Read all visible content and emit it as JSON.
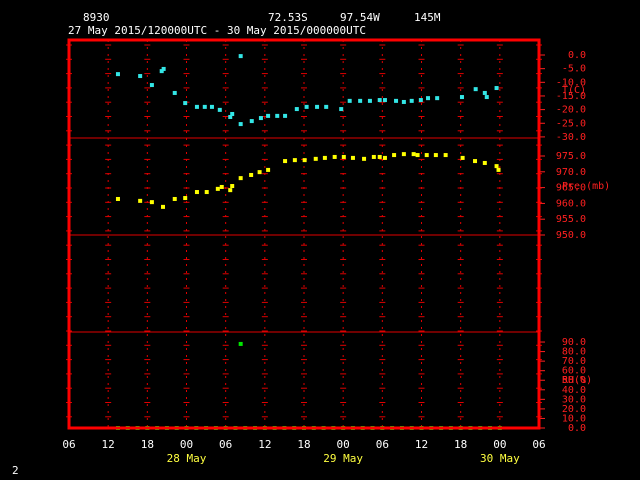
{
  "header": {
    "station": "8930",
    "latitude": "72.53S",
    "longitude": "97.54W",
    "elevation": "145M",
    "period": "27 May 2015/120000UTC - 30 May 2015/000000UTC"
  },
  "x_axis": {
    "xlim": [
      0,
      72
    ],
    "xticks": [
      {
        "value": 0,
        "label": "06"
      },
      {
        "value": 6,
        "label": "12"
      },
      {
        "value": 12,
        "label": "18"
      },
      {
        "value": 18,
        "label": "00"
      },
      {
        "value": 24,
        "label": "06"
      },
      {
        "value": 30,
        "label": "12"
      },
      {
        "value": 36,
        "label": "18"
      },
      {
        "value": 42,
        "label": "00"
      },
      {
        "value": 48,
        "label": "06"
      },
      {
        "value": 54,
        "label": "12"
      },
      {
        "value": 60,
        "label": "18"
      },
      {
        "value": 66,
        "label": "00"
      },
      {
        "value": 72,
        "label": "06"
      }
    ],
    "date_labels": [
      {
        "value": 18,
        "label": "28 May"
      },
      {
        "value": 42,
        "label": "29 May"
      },
      {
        "value": 66,
        "label": "30 May"
      }
    ]
  },
  "chart_data": [
    {
      "type": "scatter",
      "axis_label": "T(C)",
      "color": "#33e6e6",
      "ylim": [
        -30.4,
        5.5
      ],
      "yticks": [
        {
          "value": 0,
          "label": "0.0"
        },
        {
          "value": -5,
          "label": "-5.0"
        },
        {
          "value": -10,
          "label": "-10.0"
        },
        {
          "value": -15,
          "label": "-15.0"
        },
        {
          "value": -20,
          "label": "-20.0"
        },
        {
          "value": -25,
          "label": "-25.0"
        },
        {
          "value": -30,
          "label": "-30.0"
        }
      ],
      "x": [
        7.5,
        10.9,
        12.7,
        14.2,
        14.5,
        16.2,
        17.8,
        19.6,
        20.8,
        21.9,
        23.1,
        24.7,
        25.0,
        26.3,
        26.3,
        28.0,
        29.4,
        30.5,
        31.9,
        33.1,
        34.9,
        36.4,
        38.0,
        39.4,
        41.7,
        43.0,
        44.6,
        46.1,
        47.6,
        48.4,
        50.1,
        51.3,
        52.5,
        53.9,
        55.0,
        56.4,
        60.2,
        62.3,
        63.7,
        64.0,
        65.5
      ],
      "values": [
        -7.0,
        -7.7,
        -11.0,
        -5.9,
        -5.1,
        -13.9,
        -17.6,
        -19.0,
        -19.0,
        -19.0,
        -20.1,
        -22.7,
        -21.6,
        -0.4,
        -25.3,
        -24.2,
        -23.1,
        -22.3,
        -22.3,
        -22.3,
        -19.8,
        -19.0,
        -19.0,
        -19.0,
        -19.8,
        -16.8,
        -16.8,
        -16.8,
        -16.5,
        -16.5,
        -16.8,
        -17.2,
        -16.8,
        -16.5,
        -15.8,
        -15.8,
        -15.4,
        -12.5,
        -13.9,
        -15.4,
        -12.1
      ]
    },
    {
      "type": "scatter",
      "axis_label": "Pre (mb)",
      "color": "#ffff00",
      "ylim": [
        950,
        980.7
      ],
      "yticks": [
        {
          "value": 950,
          "label": "950.0"
        },
        {
          "value": 955,
          "label": "955.0"
        },
        {
          "value": 960,
          "label": "960.0"
        },
        {
          "value": 965,
          "label": "965.0"
        },
        {
          "value": 970,
          "label": "970.0"
        },
        {
          "value": 975,
          "label": "975.0"
        }
      ],
      "x": [
        7.5,
        10.9,
        12.7,
        14.4,
        16.2,
        17.8,
        19.6,
        21.1,
        22.8,
        23.4,
        24.7,
        25.0,
        26.3,
        27.9,
        29.2,
        30.5,
        33.1,
        34.6,
        36.1,
        37.8,
        39.2,
        40.7,
        42.1,
        43.5,
        45.2,
        46.7,
        47.6,
        48.4,
        49.8,
        51.3,
        52.8,
        53.4,
        54.8,
        56.2,
        57.7,
        60.3,
        62.2,
        63.7,
        65.5,
        65.8
      ],
      "values": [
        961.4,
        960.8,
        960.4,
        958.9,
        961.4,
        961.7,
        963.6,
        963.6,
        964.6,
        965.2,
        964.2,
        965.5,
        968.0,
        969.0,
        969.9,
        970.6,
        973.4,
        973.7,
        973.7,
        974.1,
        974.4,
        974.7,
        974.7,
        974.4,
        974.1,
        974.7,
        974.7,
        974.4,
        975.3,
        975.6,
        975.6,
        975.3,
        975.3,
        975.3,
        975.3,
        974.4,
        973.4,
        972.8,
        971.8,
        970.6
      ]
    },
    {
      "type": "scatter",
      "axis_label": "RH(%)",
      "color": "#00e600",
      "ylim": [
        0,
        100.5
      ],
      "yticks": [
        {
          "value": 0,
          "label": "0.0"
        },
        {
          "value": 10,
          "label": "10.0"
        },
        {
          "value": 20,
          "label": "20.0"
        },
        {
          "value": 30,
          "label": "30.0"
        },
        {
          "value": 40,
          "label": "40.0"
        },
        {
          "value": 50,
          "label": "50.0"
        },
        {
          "value": 60,
          "label": "60.0"
        },
        {
          "value": 70,
          "label": "70.0"
        },
        {
          "value": 80,
          "label": "80.0"
        },
        {
          "value": 90,
          "label": "90.0"
        }
      ],
      "x": [
        7.5,
        9,
        10.5,
        12,
        13.5,
        15,
        16.5,
        18,
        19.5,
        21,
        22.5,
        24,
        25.5,
        26.3,
        27,
        28.5,
        30,
        31.5,
        33,
        34.5,
        36,
        37.5,
        39,
        40.5,
        42,
        43.5,
        45,
        46.5,
        48,
        49.5,
        51,
        52.5,
        54,
        55.5,
        57,
        58.5,
        60,
        61.5,
        63,
        64.5,
        66
      ],
      "values": [
        0,
        0,
        0,
        0,
        0,
        0,
        0,
        0,
        0,
        0,
        0,
        0,
        0,
        88,
        0,
        0,
        0,
        0,
        0,
        0,
        0,
        0,
        0,
        0,
        0,
        0,
        0,
        0,
        0,
        0,
        0,
        0,
        0,
        0,
        0,
        0,
        0,
        0,
        0,
        0,
        0
      ]
    }
  ],
  "page_number": "2"
}
